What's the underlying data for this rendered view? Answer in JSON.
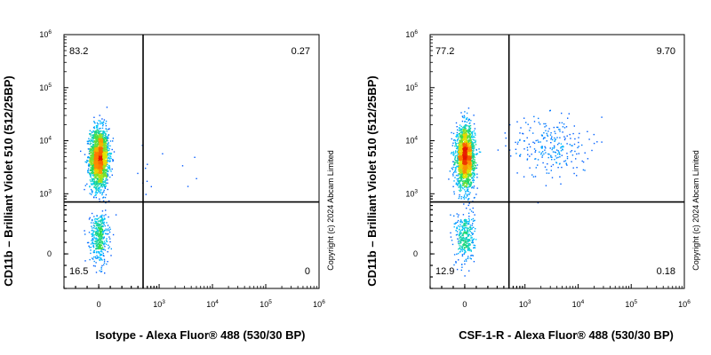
{
  "copyright": "Copyright (c) 2024 Abcam Limited",
  "chart_data": [
    {
      "type": "scatter",
      "subtype": "flow-cytometry-density-plot",
      "xlabel": "Isotype - Alexa Fluor® 488 (530/30 BP)",
      "ylabel": "CD11b – Brilliant Violet 510 (512/25BP)",
      "xscale": "biexponential",
      "yscale": "biexponential",
      "xlim": [
        -300,
        1000000
      ],
      "ylim": [
        -300,
        1000000
      ],
      "x_ticks": [
        {
          "value": 0,
          "base": "0",
          "exp": ""
        },
        {
          "value": 1000,
          "base": "10",
          "exp": "3"
        },
        {
          "value": 10000,
          "base": "10",
          "exp": "4"
        },
        {
          "value": 100000,
          "base": "10",
          "exp": "5"
        },
        {
          "value": 1000000,
          "base": "10",
          "exp": "6"
        }
      ],
      "y_ticks": [
        {
          "value": 0,
          "base": "0",
          "exp": ""
        },
        {
          "value": 1000,
          "base": "10",
          "exp": "3"
        },
        {
          "value": 10000,
          "base": "10",
          "exp": "4"
        },
        {
          "value": 100000,
          "base": "10",
          "exp": "5"
        },
        {
          "value": 1000000,
          "base": "10",
          "exp": "6"
        }
      ],
      "gate": {
        "x": 500,
        "y": 700
      },
      "quadrants": {
        "upper_left": "83.2",
        "upper_right": "0.27",
        "lower_left": "16.5",
        "lower_right": "0"
      },
      "populations": [
        {
          "x_center": 0,
          "x_spread": 40,
          "y_center": 4800,
          "y_log_spread": 0.28,
          "weight": 0.83
        },
        {
          "x_center": 0,
          "x_spread": 40,
          "y_center": 150,
          "y_log_spread": 0.5,
          "weight": 0.165
        },
        {
          "x_center": 900,
          "x_spread": 250,
          "y_center": 2500,
          "y_log_spread": 0.25,
          "weight": 0.005
        }
      ]
    },
    {
      "type": "scatter",
      "subtype": "flow-cytometry-density-plot",
      "xlabel": "CSF-1-R - Alexa Fluor® 488 (530/30 BP)",
      "ylabel": "CD11b – Brilliant Violet 510 (512/25BP)",
      "xscale": "biexponential",
      "yscale": "biexponential",
      "xlim": [
        -300,
        1000000
      ],
      "ylim": [
        -300,
        1000000
      ],
      "x_ticks": [
        {
          "value": 0,
          "base": "0",
          "exp": ""
        },
        {
          "value": 1000,
          "base": "10",
          "exp": "3"
        },
        {
          "value": 10000,
          "base": "10",
          "exp": "4"
        },
        {
          "value": 100000,
          "base": "10",
          "exp": "5"
        },
        {
          "value": 1000000,
          "base": "10",
          "exp": "6"
        }
      ],
      "y_ticks": [
        {
          "value": 0,
          "base": "0",
          "exp": ""
        },
        {
          "value": 1000,
          "base": "10",
          "exp": "3"
        },
        {
          "value": 10000,
          "base": "10",
          "exp": "4"
        },
        {
          "value": 100000,
          "base": "10",
          "exp": "5"
        },
        {
          "value": 1000000,
          "base": "10",
          "exp": "6"
        }
      ],
      "gate": {
        "x": 500,
        "y": 700
      },
      "quadrants": {
        "upper_left": "77.2",
        "upper_right": "9.70",
        "lower_left": "12.9",
        "lower_right": "0.18"
      },
      "populations": [
        {
          "x_center": 0,
          "x_spread": 40,
          "y_center": 5000,
          "y_log_spread": 0.28,
          "weight": 0.77
        },
        {
          "x_center": 0,
          "x_spread": 40,
          "y_center": 150,
          "y_log_spread": 0.5,
          "weight": 0.13
        },
        {
          "x_center": 3000,
          "x_spread": 1800,
          "y_center": 8000,
          "y_log_spread": 0.3,
          "weight": 0.097
        }
      ]
    }
  ]
}
